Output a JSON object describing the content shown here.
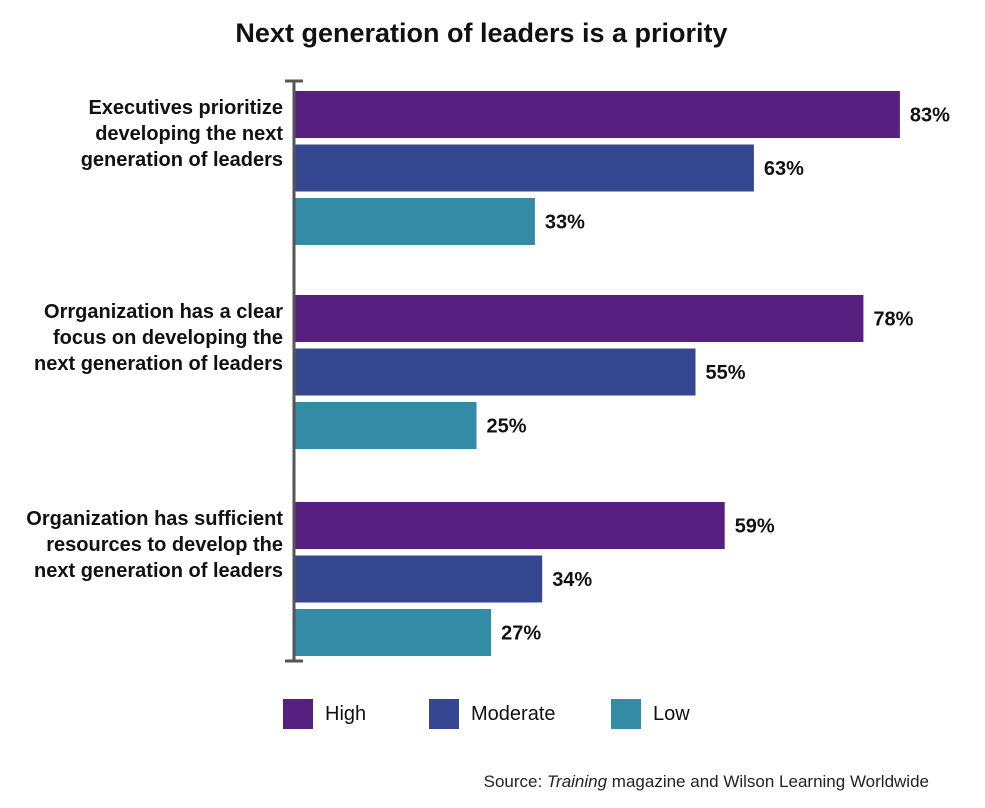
{
  "chart_data": {
    "type": "bar",
    "orientation": "horizontal",
    "title": "Next generation of leaders is a priority",
    "categories": [
      [
        "Executives prioritize",
        "developing the next",
        "generation of leaders"
      ],
      [
        "Orrganization has a clear",
        "focus on developing  the",
        "next generation of leaders"
      ],
      [
        "Organization has sufficient",
        "resources to develop the",
        "next generation of leaders"
      ]
    ],
    "series": [
      {
        "name": "High",
        "color": "#561F80",
        "values": [
          83,
          78,
          59
        ],
        "labels": [
          "83%",
          "78%",
          "59%"
        ]
      },
      {
        "name": "Moderate",
        "color": "#344690",
        "values": [
          63,
          55,
          34
        ],
        "labels": [
          "63%",
          "55%",
          "34%"
        ]
      },
      {
        "name": "Low",
        "color": "#348BA6",
        "values": [
          33,
          25,
          27
        ],
        "labels": [
          "33%",
          "25%",
          "27%"
        ]
      }
    ],
    "xlim": [
      0,
      100
    ],
    "grid": false,
    "legend_position": "bottom",
    "source": {
      "prefix": "Source: ",
      "italic": "Training",
      "suffix": " magazine and Wilson Learning Worldwide"
    }
  }
}
